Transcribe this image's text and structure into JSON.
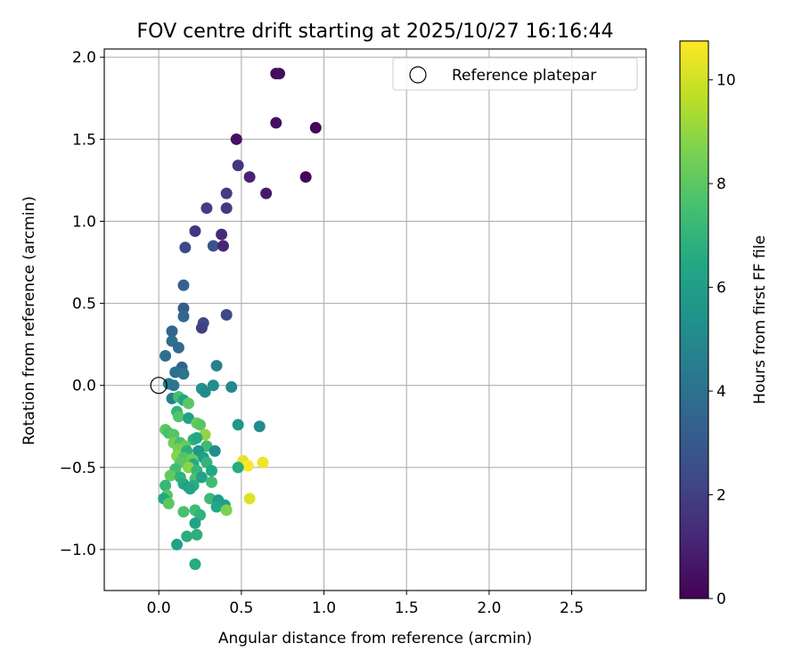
{
  "chart_data": {
    "type": "scatter",
    "title": "FOV centre drift starting at 2025/10/27 16:16:44",
    "xlabel": "Angular distance from reference (arcmin)",
    "ylabel": "Rotation from reference (arcmin)",
    "xlim": [
      -0.33,
      2.95
    ],
    "ylim": [
      -1.25,
      2.05
    ],
    "xticks": [
      0.0,
      0.5,
      1.0,
      1.5,
      2.0,
      2.5
    ],
    "xtick_labels": [
      "0.0",
      "0.5",
      "1.0",
      "1.5",
      "2.0",
      "2.5"
    ],
    "yticks": [
      -1.0,
      -0.5,
      0.0,
      0.5,
      1.0,
      1.5,
      2.0
    ],
    "ytick_labels": [
      "−1.0",
      "−0.5",
      "0.0",
      "0.5",
      "1.0",
      "1.5",
      "2.0"
    ],
    "grid": true,
    "legend": {
      "position": "top-right",
      "label": "Reference platepar"
    },
    "reference_point": {
      "x": 0.0,
      "y": 0.0,
      "marker": "open-circle",
      "color": "#000000"
    },
    "colorbar": {
      "label": "Hours from first FF file",
      "colormap": "viridis",
      "range": [
        0,
        10.75
      ],
      "ticks": [
        0,
        2,
        4,
        6,
        8,
        10
      ],
      "tick_labels": [
        "0",
        "2",
        "4",
        "6",
        "8",
        "10"
      ]
    },
    "points": [
      {
        "x": 0.71,
        "y": 1.9,
        "h": 0.3
      },
      {
        "x": 0.73,
        "y": 1.9,
        "h": 0.4
      },
      {
        "x": 0.95,
        "y": 1.57,
        "h": 0.2
      },
      {
        "x": 0.71,
        "y": 1.6,
        "h": 0.4
      },
      {
        "x": 0.47,
        "y": 1.5,
        "h": 0.5
      },
      {
        "x": 0.48,
        "y": 1.34,
        "h": 1.7
      },
      {
        "x": 0.55,
        "y": 1.27,
        "h": 1.0
      },
      {
        "x": 0.89,
        "y": 1.27,
        "h": 0.2
      },
      {
        "x": 0.65,
        "y": 1.17,
        "h": 0.8
      },
      {
        "x": 0.41,
        "y": 1.17,
        "h": 1.9
      },
      {
        "x": 0.29,
        "y": 1.08,
        "h": 2.0
      },
      {
        "x": 0.41,
        "y": 1.08,
        "h": 1.8
      },
      {
        "x": 0.22,
        "y": 0.94,
        "h": 1.6
      },
      {
        "x": 0.38,
        "y": 0.92,
        "h": 1.3
      },
      {
        "x": 0.16,
        "y": 0.84,
        "h": 2.4
      },
      {
        "x": 0.33,
        "y": 0.85,
        "h": 2.8
      },
      {
        "x": 0.39,
        "y": 0.85,
        "h": 1.1
      },
      {
        "x": 0.15,
        "y": 0.61,
        "h": 3.3
      },
      {
        "x": 0.15,
        "y": 0.47,
        "h": 3.2
      },
      {
        "x": 0.15,
        "y": 0.42,
        "h": 3.6
      },
      {
        "x": 0.41,
        "y": 0.43,
        "h": 2.3
      },
      {
        "x": 0.27,
        "y": 0.38,
        "h": 2.4
      },
      {
        "x": 0.26,
        "y": 0.35,
        "h": 2.0
      },
      {
        "x": 0.08,
        "y": 0.33,
        "h": 3.5
      },
      {
        "x": 0.08,
        "y": 0.27,
        "h": 3.8
      },
      {
        "x": 0.12,
        "y": 0.23,
        "h": 3.7
      },
      {
        "x": 0.04,
        "y": 0.18,
        "h": 3.9
      },
      {
        "x": 0.14,
        "y": 0.11,
        "h": 3.5
      },
      {
        "x": 0.1,
        "y": 0.08,
        "h": 4.0
      },
      {
        "x": 0.15,
        "y": 0.07,
        "h": 4.2
      },
      {
        "x": 0.35,
        "y": 0.12,
        "h": 4.7
      },
      {
        "x": 0.06,
        "y": 0.01,
        "h": 4.4
      },
      {
        "x": 0.09,
        "y": 0.0,
        "h": 4.2
      },
      {
        "x": 0.26,
        "y": -0.02,
        "h": 5.4
      },
      {
        "x": 0.28,
        "y": -0.04,
        "h": 5.0
      },
      {
        "x": 0.33,
        "y": 0.0,
        "h": 5.2
      },
      {
        "x": 0.44,
        "y": -0.01,
        "h": 5.0
      },
      {
        "x": 0.08,
        "y": -0.08,
        "h": 4.6
      },
      {
        "x": 0.12,
        "y": -0.07,
        "h": 7.5
      },
      {
        "x": 0.15,
        "y": -0.09,
        "h": 6.3
      },
      {
        "x": 0.18,
        "y": -0.11,
        "h": 8.0
      },
      {
        "x": 0.11,
        "y": -0.16,
        "h": 6.9
      },
      {
        "x": 0.12,
        "y": -0.19,
        "h": 7.8
      },
      {
        "x": 0.18,
        "y": -0.2,
        "h": 6.1
      },
      {
        "x": 0.23,
        "y": -0.23,
        "h": 8.2
      },
      {
        "x": 0.25,
        "y": -0.24,
        "h": 7.9
      },
      {
        "x": 0.48,
        "y": -0.24,
        "h": 5.6
      },
      {
        "x": 0.61,
        "y": -0.25,
        "h": 5.1
      },
      {
        "x": 0.04,
        "y": -0.27,
        "h": 8.0
      },
      {
        "x": 0.06,
        "y": -0.29,
        "h": 7.6
      },
      {
        "x": 0.09,
        "y": -0.3,
        "h": 7.9
      },
      {
        "x": 0.28,
        "y": -0.3,
        "h": 9.0
      },
      {
        "x": 0.21,
        "y": -0.33,
        "h": 6.8
      },
      {
        "x": 0.23,
        "y": -0.32,
        "h": 6.5
      },
      {
        "x": 0.09,
        "y": -0.35,
        "h": 8.4
      },
      {
        "x": 0.13,
        "y": -0.35,
        "h": 7.6
      },
      {
        "x": 0.16,
        "y": -0.37,
        "h": 8.2
      },
      {
        "x": 0.29,
        "y": -0.37,
        "h": 7.3
      },
      {
        "x": 0.12,
        "y": -0.39,
        "h": 8.5
      },
      {
        "x": 0.17,
        "y": -0.4,
        "h": 6.8
      },
      {
        "x": 0.24,
        "y": -0.4,
        "h": 5.6
      },
      {
        "x": 0.34,
        "y": -0.4,
        "h": 5.2
      },
      {
        "x": 0.11,
        "y": -0.43,
        "h": 8.8
      },
      {
        "x": 0.15,
        "y": -0.44,
        "h": 7.8
      },
      {
        "x": 0.2,
        "y": -0.45,
        "h": 8.3
      },
      {
        "x": 0.27,
        "y": -0.44,
        "h": 6.0
      },
      {
        "x": 0.13,
        "y": -0.47,
        "h": 8.0
      },
      {
        "x": 0.21,
        "y": -0.48,
        "h": 6.6
      },
      {
        "x": 0.29,
        "y": -0.47,
        "h": 7.0
      },
      {
        "x": 0.51,
        "y": -0.46,
        "h": 10.3
      },
      {
        "x": 0.63,
        "y": -0.47,
        "h": 10.5
      },
      {
        "x": 0.54,
        "y": -0.49,
        "h": 10.7
      },
      {
        "x": 0.48,
        "y": -0.5,
        "h": 6.6
      },
      {
        "x": 0.1,
        "y": -0.51,
        "h": 7.4
      },
      {
        "x": 0.18,
        "y": -0.5,
        "h": 8.8
      },
      {
        "x": 0.23,
        "y": -0.52,
        "h": 7.1
      },
      {
        "x": 0.32,
        "y": -0.52,
        "h": 6.4
      },
      {
        "x": 0.07,
        "y": -0.55,
        "h": 8.1
      },
      {
        "x": 0.13,
        "y": -0.56,
        "h": 6.9
      },
      {
        "x": 0.22,
        "y": -0.57,
        "h": 7.6
      },
      {
        "x": 0.26,
        "y": -0.56,
        "h": 6.2
      },
      {
        "x": 0.32,
        "y": -0.59,
        "h": 7.4
      },
      {
        "x": 0.15,
        "y": -0.6,
        "h": 6.5
      },
      {
        "x": 0.04,
        "y": -0.61,
        "h": 7.1
      },
      {
        "x": 0.18,
        "y": -0.62,
        "h": 5.9
      },
      {
        "x": 0.21,
        "y": -0.61,
        "h": 6.7
      },
      {
        "x": 0.19,
        "y": -0.63,
        "h": 6.3
      },
      {
        "x": 0.05,
        "y": -0.67,
        "h": 7.9
      },
      {
        "x": 0.03,
        "y": -0.69,
        "h": 6.5
      },
      {
        "x": 0.31,
        "y": -0.69,
        "h": 7.3
      },
      {
        "x": 0.36,
        "y": -0.7,
        "h": 5.9
      },
      {
        "x": 0.55,
        "y": -0.69,
        "h": 10.2
      },
      {
        "x": 0.06,
        "y": -0.72,
        "h": 8.0
      },
      {
        "x": 0.4,
        "y": -0.73,
        "h": 6.0
      },
      {
        "x": 0.35,
        "y": -0.74,
        "h": 6.4
      },
      {
        "x": 0.15,
        "y": -0.77,
        "h": 7.6
      },
      {
        "x": 0.22,
        "y": -0.76,
        "h": 7.4
      },
      {
        "x": 0.25,
        "y": -0.79,
        "h": 6.9
      },
      {
        "x": 0.41,
        "y": -0.76,
        "h": 8.6
      },
      {
        "x": 0.22,
        "y": -0.84,
        "h": 6.2
      },
      {
        "x": 0.17,
        "y": -0.92,
        "h": 6.7
      },
      {
        "x": 0.23,
        "y": -0.91,
        "h": 6.8
      },
      {
        "x": 0.11,
        "y": -0.97,
        "h": 6.1
      },
      {
        "x": 0.22,
        "y": -1.09,
        "h": 6.6
      }
    ]
  }
}
